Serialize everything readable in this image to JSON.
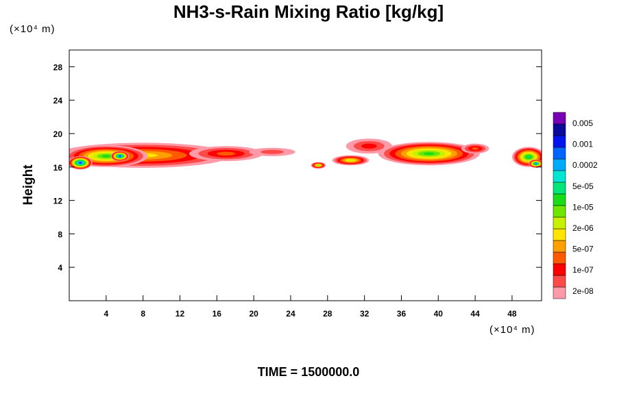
{
  "chart_data": {
    "type": "heatmap",
    "title": "NH3-s-Rain Mixing Ratio [kg/kg]",
    "xlabel": "",
    "ylabel": "Height",
    "x_unit": "(×10⁴ m)",
    "y_unit": "(×10⁴ m)",
    "xlim": [
      0,
      51.2
    ],
    "ylim": [
      0,
      30
    ],
    "x_ticks": [
      4,
      8,
      12,
      16,
      20,
      24,
      28,
      32,
      36,
      40,
      44,
      48
    ],
    "y_ticks": [
      4,
      8,
      12,
      16,
      20,
      24,
      28
    ],
    "footer": "TIME = 1500000.0",
    "colorbar": {
      "labels": [
        "0.005",
        "0.001",
        "0.0002",
        "5e-05",
        "1e-05",
        "2e-06",
        "5e-07",
        "1e-07",
        "2e-08"
      ],
      "colors": [
        "#ff9aa8",
        "#ff4a4a",
        "#ff0000",
        "#ff5a00",
        "#ffa000",
        "#ffe600",
        "#c8f000",
        "#6ee600",
        "#19dc19",
        "#00e678",
        "#00e6d2",
        "#00aaff",
        "#0064ff",
        "#0014f0",
        "#0a0a9b",
        "#7800b4"
      ]
    },
    "cloud_blobs": [
      {
        "x": 8,
        "y": 17.4,
        "rx": 9.5,
        "ry": 1.5,
        "level": 5
      },
      {
        "x": 4,
        "y": 17.3,
        "rx": 4.5,
        "ry": 1.3,
        "level": 8
      },
      {
        "x": 1.2,
        "y": 16.5,
        "rx": 1.3,
        "ry": 0.8,
        "level": 13
      },
      {
        "x": 5.5,
        "y": 17.3,
        "rx": 1.0,
        "ry": 0.6,
        "level": 13
      },
      {
        "x": 17,
        "y": 17.6,
        "rx": 4,
        "ry": 0.9,
        "level": 3
      },
      {
        "x": 22,
        "y": 17.8,
        "rx": 2.5,
        "ry": 0.5,
        "level": 1
      },
      {
        "x": 27,
        "y": 16.2,
        "rx": 0.8,
        "ry": 0.4,
        "level": 7
      },
      {
        "x": 30.5,
        "y": 16.8,
        "rx": 2.0,
        "ry": 0.6,
        "level": 6
      },
      {
        "x": 32.5,
        "y": 18.5,
        "rx": 2.5,
        "ry": 0.9,
        "level": 2
      },
      {
        "x": 39,
        "y": 17.6,
        "rx": 5.5,
        "ry": 1.4,
        "level": 8
      },
      {
        "x": 44,
        "y": 18.2,
        "rx": 1.5,
        "ry": 0.6,
        "level": 3
      },
      {
        "x": 49.8,
        "y": 17.2,
        "rx": 1.8,
        "ry": 1.2,
        "level": 9
      },
      {
        "x": 50.6,
        "y": 16.4,
        "rx": 0.8,
        "ry": 0.5,
        "level": 12
      }
    ]
  }
}
